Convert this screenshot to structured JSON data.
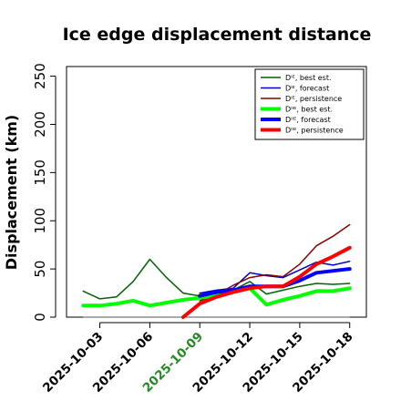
{
  "chart_data": {
    "type": "line",
    "title": "Ice edge displacement distance",
    "ylabel": "Displacement (km)",
    "xlabel": "",
    "ylim": [
      0,
      260
    ],
    "yticks": [
      0,
      50,
      100,
      150,
      200,
      250
    ],
    "x_dates": [
      "2025-10-01",
      "2025-10-02",
      "2025-10-03",
      "2025-10-04",
      "2025-10-05",
      "2025-10-06",
      "2025-10-07",
      "2025-10-08",
      "2025-10-09",
      "2025-10-10",
      "2025-10-11",
      "2025-10-12",
      "2025-10-13",
      "2025-10-14",
      "2025-10-15",
      "2025-10-16",
      "2025-10-17",
      "2025-10-18",
      "2025-10-19"
    ],
    "xticks": [
      {
        "label": "2025-10-03",
        "color": "#000000"
      },
      {
        "label": "2025-10-06",
        "color": "#000000"
      },
      {
        "label": "2025-10-09",
        "color": "#228B22"
      },
      {
        "label": "2025-10-12",
        "color": "#000000"
      },
      {
        "label": "2025-10-15",
        "color": "#000000"
      },
      {
        "label": "2025-10-18",
        "color": "#000000"
      }
    ],
    "grid": false,
    "legend_position": "top-right",
    "baseline": {
      "dates": [
        "2025-10-02",
        "2025-10-18"
      ],
      "value": 0,
      "color": "#555555"
    },
    "series": [
      {
        "name": "Dᴵᴱ, best est.",
        "color": "#006400",
        "width": 1.5,
        "x": [
          "2025-10-02",
          "2025-10-03",
          "2025-10-04",
          "2025-10-05",
          "2025-10-06",
          "2025-10-07",
          "2025-10-08",
          "2025-10-09",
          "2025-10-10",
          "2025-10-11",
          "2025-10-12",
          "2025-10-13",
          "2025-10-14",
          "2025-10-15",
          "2025-10-16",
          "2025-10-17",
          "2025-10-18"
        ],
        "y": [
          27,
          19,
          21,
          37,
          60,
          41,
          25,
          22,
          24,
          28,
          37,
          24,
          28,
          32,
          35,
          34,
          35
        ]
      },
      {
        "name": "Dᴵᴱ, forecast",
        "color": "#0000CD",
        "width": 1.5,
        "x": [
          "2025-10-09",
          "2025-10-10",
          "2025-10-11",
          "2025-10-12",
          "2025-10-13",
          "2025-10-14",
          "2025-10-15",
          "2025-10-16",
          "2025-10-17",
          "2025-10-18"
        ],
        "y": [
          25,
          28,
          30,
          46,
          43,
          41,
          49,
          57,
          54,
          58
        ]
      },
      {
        "name": "Dᴵᴱ, persistence",
        "color": "#8B0000",
        "width": 1.5,
        "x": [
          "2025-10-09",
          "2025-10-10",
          "2025-10-11",
          "2025-10-12",
          "2025-10-13",
          "2025-10-14",
          "2025-10-15",
          "2025-10-16",
          "2025-10-17",
          "2025-10-18"
        ],
        "y": [
          17,
          23,
          33,
          41,
          44,
          42,
          55,
          74,
          84,
          96
        ]
      },
      {
        "name": "Dᴵᴵᴱ, best est.",
        "color": "#00FF00",
        "width": 4,
        "x": [
          "2025-10-02",
          "2025-10-03",
          "2025-10-04",
          "2025-10-05",
          "2025-10-06",
          "2025-10-07",
          "2025-10-08",
          "2025-10-09",
          "2025-10-10",
          "2025-10-11",
          "2025-10-12",
          "2025-10-13",
          "2025-10-14",
          "2025-10-15",
          "2025-10-16",
          "2025-10-17",
          "2025-10-18"
        ],
        "y": [
          12,
          12,
          14,
          17,
          12,
          15,
          18,
          20,
          22,
          27,
          30,
          13,
          18,
          22,
          27,
          27,
          30
        ]
      },
      {
        "name": "Dᴵᴵᴱ, forecast",
        "color": "#0000FF",
        "width": 4,
        "x": [
          "2025-10-09",
          "2025-10-10",
          "2025-10-11",
          "2025-10-12",
          "2025-10-13",
          "2025-10-14",
          "2025-10-15",
          "2025-10-16",
          "2025-10-17",
          "2025-10-18"
        ],
        "y": [
          22,
          26,
          28,
          32,
          32,
          32,
          38,
          46,
          48,
          50
        ]
      },
      {
        "name": "Dᴵᴵᴱ, persistence",
        "color": "#FF0000",
        "width": 4,
        "x": [
          "2025-10-08",
          "2025-10-09",
          "2025-10-10",
          "2025-10-11",
          "2025-10-12",
          "2025-10-13",
          "2025-10-14",
          "2025-10-15",
          "2025-10-16",
          "2025-10-17",
          "2025-10-18"
        ],
        "y": [
          0,
          14,
          21,
          26,
          30,
          32,
          32,
          42,
          55,
          63,
          72
        ]
      }
    ]
  }
}
